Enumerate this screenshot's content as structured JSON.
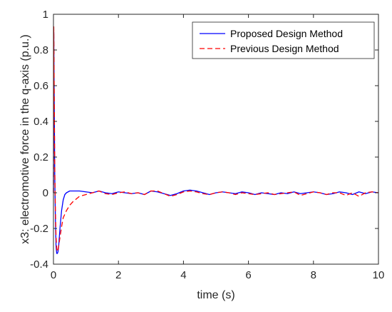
{
  "chart_data": {
    "type": "line",
    "title": "",
    "xlabel": "time (s)",
    "ylabel": "x3: electromotive force in the q-axis (p.u.)",
    "xlim": [
      0,
      10
    ],
    "ylim": [
      -0.4,
      1
    ],
    "xticks": [
      0,
      2,
      4,
      6,
      8,
      10
    ],
    "yticks": [
      -0.4,
      -0.2,
      0,
      0.2,
      0.4,
      0.6,
      0.8,
      1
    ],
    "xtick_labels": [
      "0",
      "2",
      "4",
      "6",
      "8",
      "10"
    ],
    "ytick_labels": [
      "-0.4",
      "-0.2",
      "0",
      "0.2",
      "0.4",
      "0.6",
      "0.8",
      "1"
    ],
    "grid": false,
    "legend_position": "top-right",
    "series": [
      {
        "name": "Proposed Design Method",
        "color": "#0000ff",
        "style": "solid",
        "x": [
          0,
          0.01,
          0.02,
          0.04,
          0.06,
          0.08,
          0.1,
          0.12,
          0.14,
          0.16,
          0.2,
          0.25,
          0.3,
          0.35,
          0.4,
          0.5,
          0.6,
          0.8,
          1.0,
          1.2,
          1.4,
          1.6,
          1.8,
          2.0,
          2.2,
          2.4,
          2.6,
          2.8,
          3.0,
          3.2,
          3.4,
          3.6,
          3.8,
          4.0,
          4.2,
          4.4,
          4.6,
          4.8,
          5.0,
          5.2,
          5.4,
          5.6,
          5.8,
          6.0,
          6.2,
          6.4,
          6.6,
          6.8,
          7.0,
          7.2,
          7.4,
          7.6,
          7.8,
          8.0,
          8.2,
          8.4,
          8.6,
          8.8,
          9.0,
          9.2,
          9.4,
          9.6,
          9.8,
          10.0
        ],
        "y": [
          0.0,
          0.9,
          0.6,
          0.1,
          -0.15,
          -0.3,
          -0.34,
          -0.34,
          -0.33,
          -0.3,
          -0.2,
          -0.1,
          -0.04,
          -0.01,
          0.0,
          0.01,
          0.01,
          0.01,
          0.005,
          0.0,
          0.01,
          0.0,
          -0.005,
          0.005,
          0.0,
          -0.005,
          0.0,
          -0.01,
          0.01,
          0.005,
          -0.005,
          -0.015,
          -0.005,
          0.01,
          0.015,
          0.01,
          0.0,
          -0.01,
          0.0,
          0.005,
          0.0,
          -0.005,
          0.005,
          0.0,
          -0.01,
          0.0,
          -0.005,
          -0.01,
          0.0,
          -0.005,
          0.005,
          -0.005,
          0.0,
          0.005,
          0.0,
          -0.01,
          -0.005,
          0.005,
          0.0,
          -0.01,
          0.005,
          -0.005,
          0.005,
          0.0
        ]
      },
      {
        "name": "Previous Design Method",
        "color": "#ff0000",
        "style": "dashed",
        "x": [
          0,
          0.01,
          0.02,
          0.04,
          0.06,
          0.08,
          0.1,
          0.12,
          0.14,
          0.16,
          0.2,
          0.25,
          0.3,
          0.4,
          0.5,
          0.6,
          0.8,
          1.0,
          1.2,
          1.4,
          1.6,
          1.8,
          2.0,
          2.2,
          2.4,
          2.6,
          2.8,
          3.0,
          3.2,
          3.4,
          3.6,
          3.8,
          4.0,
          4.2,
          4.4,
          4.6,
          4.8,
          5.0,
          5.2,
          5.4,
          5.6,
          5.8,
          6.0,
          6.2,
          6.4,
          6.6,
          6.8,
          7.0,
          7.2,
          7.4,
          7.6,
          7.8,
          8.0,
          8.2,
          8.4,
          8.6,
          8.8,
          9.0,
          9.2,
          9.4,
          9.6,
          9.8,
          10.0
        ],
        "y": [
          0.0,
          0.93,
          0.65,
          0.15,
          -0.1,
          -0.25,
          -0.31,
          -0.33,
          -0.32,
          -0.3,
          -0.25,
          -0.19,
          -0.14,
          -0.1,
          -0.07,
          -0.05,
          -0.02,
          -0.01,
          0.0,
          0.01,
          -0.005,
          -0.01,
          0.0,
          0.005,
          -0.005,
          0.0,
          -0.01,
          0.01,
          0.01,
          -0.005,
          -0.02,
          -0.01,
          0.005,
          0.01,
          0.005,
          -0.005,
          -0.01,
          0.0,
          0.005,
          0.0,
          -0.01,
          0.0,
          -0.005,
          -0.01,
          -0.005,
          0.0,
          -0.01,
          -0.005,
          0.0,
          0.005,
          -0.015,
          -0.005,
          0.005,
          0.0,
          -0.01,
          0.0,
          0.0,
          -0.015,
          0.0,
          -0.02,
          0.0,
          0.005,
          0.0
        ]
      }
    ]
  }
}
